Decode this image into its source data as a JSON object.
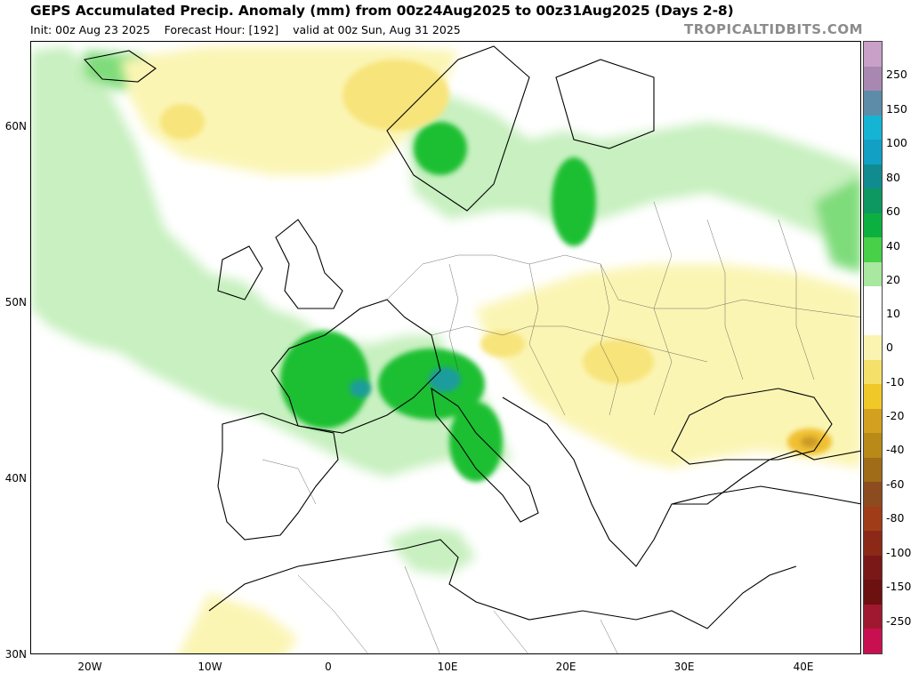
{
  "header": {
    "title": "GEPS Accumulated Precip. Anomaly (mm) from 00z24Aug2025 to 00z31Aug2025 (Days 2-8)",
    "init": "Init: 00z Aug 23 2025",
    "forecast_hour": "Forecast Hour: [192]",
    "valid": "valid at 00z Sun, Aug 31 2025",
    "brand": "TROPICALTIDBITS.COM"
  },
  "map": {
    "lat_labels": [
      "60N",
      "50N",
      "40N",
      "30N"
    ],
    "lon_labels": [
      "20W",
      "10W",
      "0",
      "10E",
      "20E",
      "30E",
      "40E"
    ],
    "colors": {
      "ocean": "#ffffff",
      "wet_light": "#c8f0c0",
      "wet_mid": "#7fdc7a",
      "wet_strong": "#1fbf30",
      "wet_heavy": "#12a52a",
      "wet_extreme": "#1a9c9c",
      "dry_light": "#fbf5b4",
      "dry_mid": "#f7e47a",
      "dry_strong": "#f0c030",
      "dry_heavy": "#c89a28"
    }
  },
  "colorbar": {
    "labels": [
      "250",
      "150",
      "100",
      "80",
      "60",
      "40",
      "20",
      "10",
      "0",
      "-10",
      "-20",
      "-40",
      "-60",
      "-80",
      "-100",
      "-150",
      "-250"
    ],
    "colors": [
      "#c8a0c8",
      "#a888b0",
      "#5c8ca8",
      "#16b4d4",
      "#12a0c4",
      "#108c90",
      "#0c9860",
      "#0cb040",
      "#48d048",
      "#a8e8a0",
      "#ffffff",
      "#ffffff",
      "#fbf4b0",
      "#f5e16a",
      "#f0c828",
      "#d4a020",
      "#b88a18",
      "#a06c18",
      "#8c4c20",
      "#a03c18",
      "#8c2818",
      "#7a1818",
      "#6c1010",
      "#a01830",
      "#c81050"
    ]
  }
}
